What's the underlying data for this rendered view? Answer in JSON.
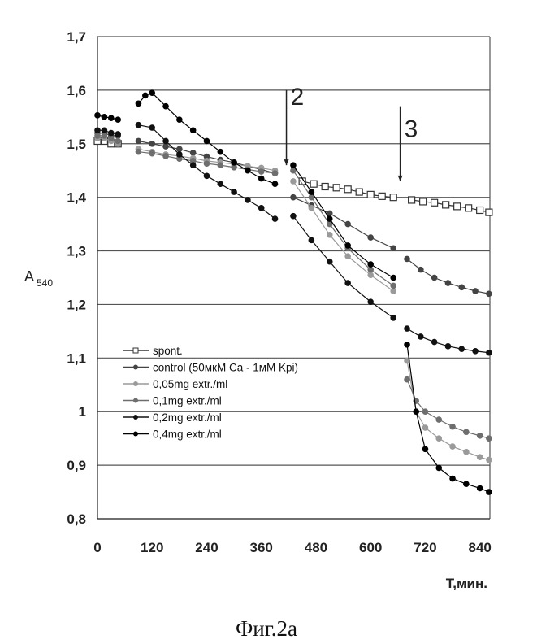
{
  "chart_data": {
    "type": "line",
    "title": "",
    "xlabel": "T,мин.",
    "ylabel": "A",
    "ylabel_sub": "540",
    "caption": "Фиг.2а",
    "xlim": [
      0,
      862
    ],
    "ylim": [
      0.8,
      1.7
    ],
    "xticks": [
      0,
      120,
      240,
      360,
      480,
      600,
      720,
      840
    ],
    "xtick_labels": [
      "0",
      "120",
      "240",
      "360",
      "480",
      "600",
      "720",
      "840"
    ],
    "yticks": [
      0.8,
      0.9,
      1.0,
      1.1,
      1.2,
      1.3,
      1.4,
      1.5,
      1.6,
      1.7
    ],
    "ytick_labels": [
      "0,8",
      "0,9",
      "1",
      "1,1",
      "1,2",
      "1,3",
      "1,4",
      "1,5",
      "1,6",
      "1,7"
    ],
    "grid": "horizontal",
    "legend_position": "lower-left",
    "annotations": [
      {
        "text": "2",
        "x": 415,
        "y_from": 1.6,
        "y_to": 1.46
      },
      {
        "text": "3",
        "x": 665,
        "y_from": 1.57,
        "y_to": 1.43
      }
    ],
    "series": [
      {
        "name": "spont.",
        "marker": "square-open",
        "color": "#333333",
        "segments": [
          [
            [
              0,
              1.505
            ],
            [
              15,
              1.505
            ],
            [
              30,
              1.5
            ],
            [
              45,
              1.5
            ]
          ],
          [
            [
              450,
              1.43
            ],
            [
              475,
              1.425
            ],
            [
              500,
              1.42
            ],
            [
              525,
              1.418
            ],
            [
              550,
              1.415
            ],
            [
              575,
              1.41
            ],
            [
              600,
              1.405
            ],
            [
              625,
              1.402
            ],
            [
              650,
              1.4
            ]
          ],
          [
            [
              690,
              1.395
            ],
            [
              715,
              1.392
            ],
            [
              740,
              1.39
            ],
            [
              765,
              1.386
            ],
            [
              790,
              1.383
            ],
            [
              815,
              1.38
            ],
            [
              840,
              1.376
            ],
            [
              860,
              1.372
            ]
          ]
        ]
      },
      {
        "name": "control (50мкМ Ca - 1мМ Kpi)",
        "marker": "circle",
        "color": "#444444",
        "segments": [
          [
            [
              0,
              1.52
            ],
            [
              15,
              1.52
            ],
            [
              30,
              1.515
            ],
            [
              45,
              1.515
            ]
          ],
          [
            [
              90,
              1.505
            ],
            [
              120,
              1.5
            ],
            [
              150,
              1.495
            ],
            [
              180,
              1.49
            ],
            [
              210,
              1.483
            ],
            [
              240,
              1.476
            ],
            [
              270,
              1.47
            ],
            [
              300,
              1.465
            ],
            [
              330,
              1.458
            ],
            [
              360,
              1.452
            ],
            [
              390,
              1.445
            ]
          ],
          [
            [
              430,
              1.4
            ],
            [
              470,
              1.385
            ],
            [
              510,
              1.37
            ],
            [
              550,
              1.35
            ],
            [
              600,
              1.325
            ],
            [
              650,
              1.305
            ]
          ],
          [
            [
              680,
              1.285
            ],
            [
              710,
              1.265
            ],
            [
              740,
              1.25
            ],
            [
              770,
              1.24
            ],
            [
              800,
              1.232
            ],
            [
              830,
              1.225
            ],
            [
              860,
              1.22
            ]
          ]
        ]
      },
      {
        "name": "0,05mg extr./ml",
        "marker": "circle",
        "color": "#9a9a9a",
        "segments": [
          [
            [
              0,
              1.51
            ],
            [
              15,
              1.51
            ],
            [
              30,
              1.505
            ],
            [
              45,
              1.5
            ]
          ],
          [
            [
              90,
              1.49
            ],
            [
              120,
              1.485
            ],
            [
              150,
              1.48
            ],
            [
              180,
              1.477
            ],
            [
              210,
              1.473
            ],
            [
              240,
              1.468
            ],
            [
              270,
              1.465
            ],
            [
              300,
              1.462
            ],
            [
              330,
              1.458
            ],
            [
              360,
              1.455
            ],
            [
              390,
              1.45
            ]
          ],
          [
            [
              430,
              1.43
            ],
            [
              470,
              1.38
            ],
            [
              510,
              1.33
            ],
            [
              550,
              1.29
            ],
            [
              600,
              1.255
            ],
            [
              650,
              1.225
            ]
          ],
          [
            [
              680,
              1.095
            ],
            [
              700,
              1.0
            ],
            [
              720,
              0.97
            ],
            [
              750,
              0.95
            ],
            [
              780,
              0.935
            ],
            [
              810,
              0.925
            ],
            [
              840,
              0.915
            ],
            [
              860,
              0.91
            ]
          ]
        ]
      },
      {
        "name": "0,1mg extr./ml",
        "marker": "circle",
        "color": "#6e6e6e",
        "segments": [
          [
            [
              0,
              1.515
            ],
            [
              15,
              1.515
            ],
            [
              30,
              1.51
            ],
            [
              45,
              1.505
            ]
          ],
          [
            [
              90,
              1.485
            ],
            [
              120,
              1.482
            ],
            [
              150,
              1.477
            ],
            [
              180,
              1.472
            ],
            [
              210,
              1.468
            ],
            [
              240,
              1.463
            ],
            [
              270,
              1.46
            ],
            [
              300,
              1.456
            ],
            [
              330,
              1.452
            ],
            [
              360,
              1.448
            ],
            [
              390,
              1.445
            ]
          ],
          [
            [
              430,
              1.45
            ],
            [
              470,
              1.4
            ],
            [
              510,
              1.35
            ],
            [
              550,
              1.305
            ],
            [
              600,
              1.265
            ],
            [
              650,
              1.235
            ]
          ],
          [
            [
              680,
              1.06
            ],
            [
              700,
              1.02
            ],
            [
              720,
              1.0
            ],
            [
              750,
              0.985
            ],
            [
              780,
              0.972
            ],
            [
              810,
              0.962
            ],
            [
              840,
              0.955
            ],
            [
              860,
              0.95
            ]
          ]
        ]
      },
      {
        "name": "0,2mg extr./ml",
        "marker": "circle",
        "color": "#111111",
        "segments": [
          [
            [
              0,
              1.525
            ],
            [
              15,
              1.525
            ],
            [
              30,
              1.52
            ],
            [
              45,
              1.518
            ]
          ],
          [
            [
              90,
              1.535
            ],
            [
              120,
              1.53
            ],
            [
              150,
              1.505
            ],
            [
              180,
              1.48
            ],
            [
              210,
              1.46
            ],
            [
              240,
              1.44
            ],
            [
              270,
              1.425
            ],
            [
              300,
              1.41
            ],
            [
              330,
              1.395
            ],
            [
              360,
              1.38
            ],
            [
              390,
              1.36
            ]
          ],
          [
            [
              430,
              1.365
            ],
            [
              470,
              1.32
            ],
            [
              510,
              1.28
            ],
            [
              550,
              1.24
            ],
            [
              600,
              1.205
            ],
            [
              650,
              1.175
            ]
          ],
          [
            [
              680,
              1.155
            ],
            [
              710,
              1.14
            ],
            [
              740,
              1.13
            ],
            [
              770,
              1.122
            ],
            [
              800,
              1.117
            ],
            [
              830,
              1.113
            ],
            [
              860,
              1.11
            ]
          ]
        ]
      },
      {
        "name": "0,4mg extr./ml",
        "marker": "circle",
        "color": "#000000",
        "segments": [
          [
            [
              0,
              1.553
            ],
            [
              15,
              1.55
            ],
            [
              30,
              1.548
            ],
            [
              45,
              1.545
            ]
          ],
          [
            [
              90,
              1.575
            ],
            [
              105,
              1.59
            ],
            [
              120,
              1.595
            ],
            [
              150,
              1.57
            ],
            [
              180,
              1.545
            ],
            [
              210,
              1.525
            ],
            [
              240,
              1.505
            ],
            [
              270,
              1.485
            ],
            [
              300,
              1.465
            ],
            [
              330,
              1.45
            ],
            [
              360,
              1.435
            ],
            [
              390,
              1.425
            ]
          ],
          [
            [
              430,
              1.46
            ],
            [
              470,
              1.41
            ],
            [
              510,
              1.36
            ],
            [
              550,
              1.31
            ],
            [
              600,
              1.275
            ],
            [
              650,
              1.25
            ]
          ],
          [
            [
              680,
              1.125
            ],
            [
              700,
              1.0
            ],
            [
              720,
              0.93
            ],
            [
              750,
              0.895
            ],
            [
              780,
              0.875
            ],
            [
              810,
              0.865
            ],
            [
              840,
              0.857
            ],
            [
              860,
              0.85
            ]
          ]
        ]
      }
    ]
  }
}
